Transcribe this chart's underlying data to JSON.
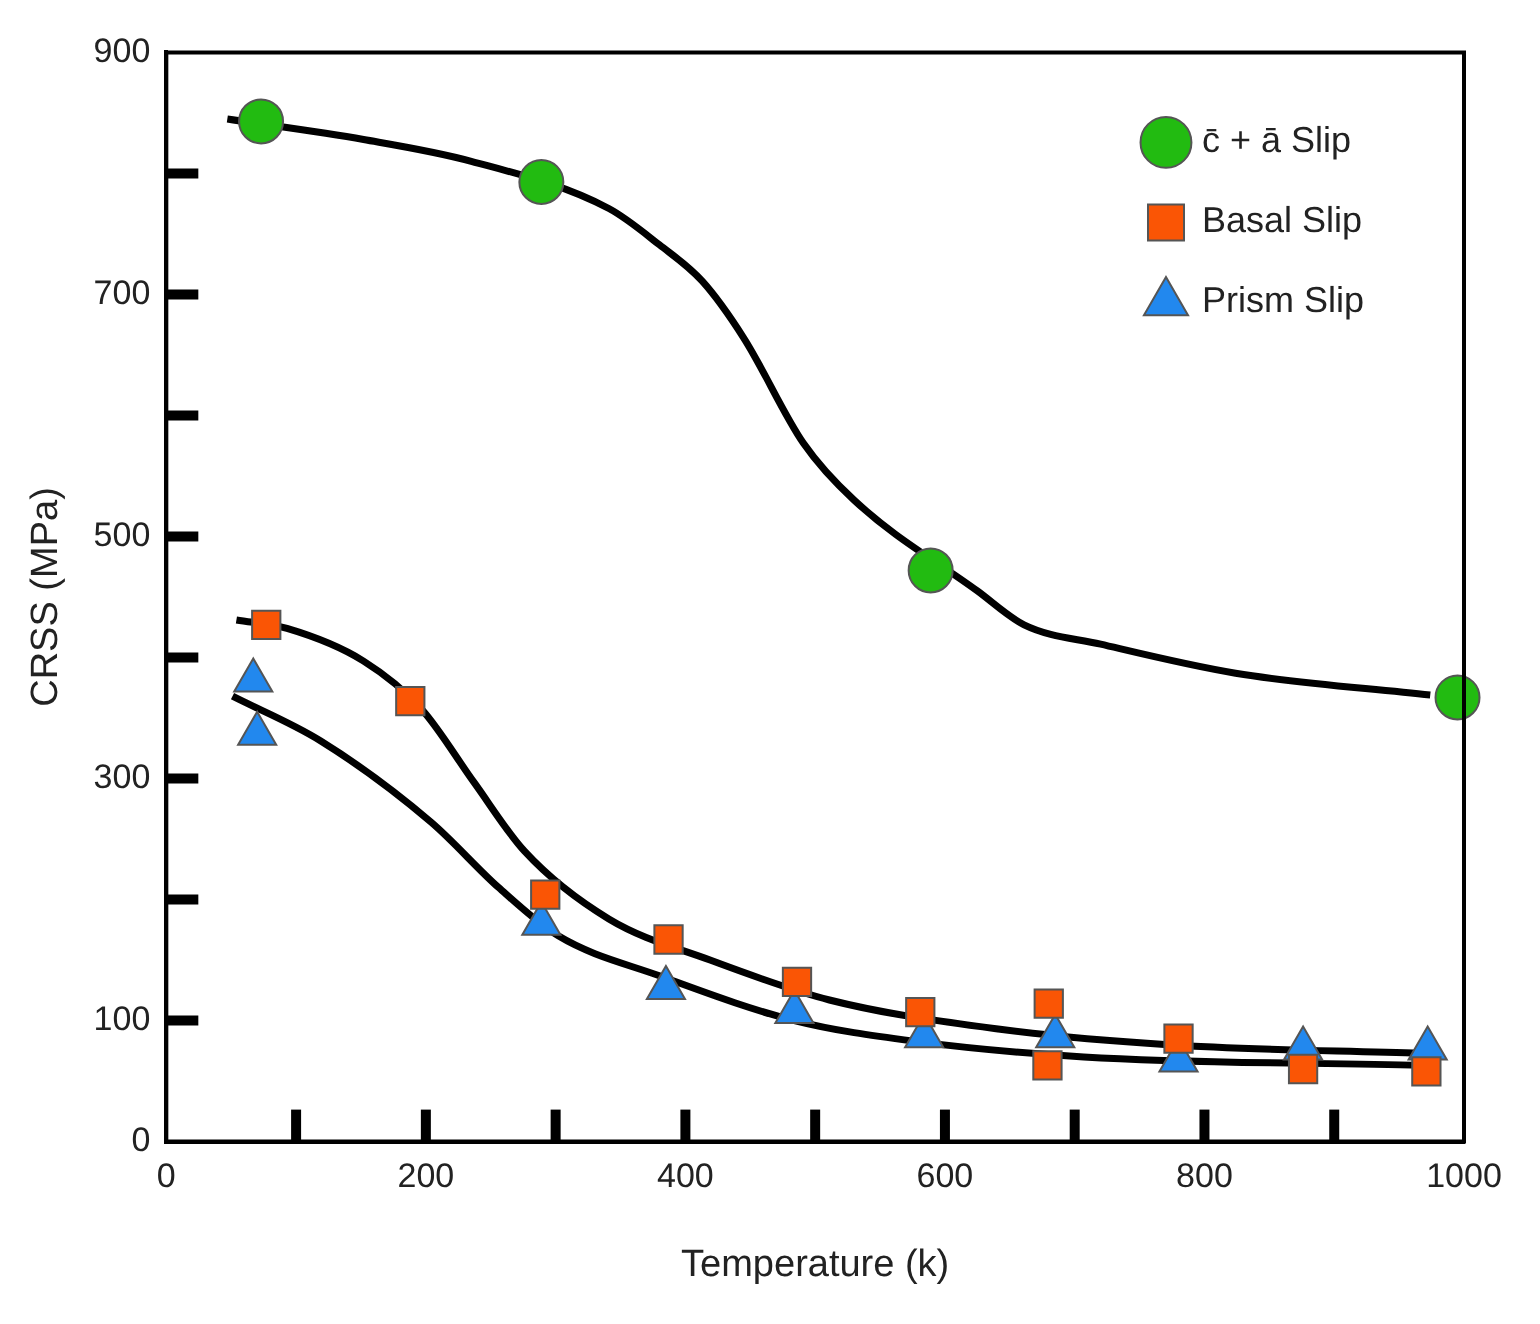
{
  "chart_data": {
    "type": "scatter",
    "xlabel": "Temperature (k)",
    "ylabel": "CRSS (MPa)",
    "xlim": [
      0,
      1000
    ],
    "ylim": [
      0,
      900
    ],
    "xticks": [
      0,
      {
        "value": 100,
        "label": null
      },
      200,
      {
        "value": 300,
        "label": null
      },
      400,
      {
        "value": 500,
        "label": null
      },
      600,
      {
        "value": 700,
        "label": null
      },
      800,
      {
        "value": 900,
        "label": null
      },
      1000
    ],
    "yticks": [
      0,
      100,
      {
        "value": 200,
        "label": null
      },
      300,
      {
        "value": 400,
        "label": null
      },
      500,
      {
        "value": 600,
        "label": null
      },
      700,
      {
        "value": 800,
        "label": null
      },
      900
    ],
    "grid": false,
    "legend": "top right",
    "series": [
      {
        "name": "c̄ + ā Slip",
        "marker": "circle",
        "color": "#22bb11",
        "x": [
          73,
          289,
          589,
          995
        ],
        "values": [
          843,
          793,
          472,
          367
        ]
      },
      {
        "name": "Basal Slip",
        "marker": "square",
        "color": "#fa5505",
        "x": [
          77,
          188,
          292,
          387,
          486,
          581,
          680,
          679,
          780,
          876,
          971
        ],
        "values": [
          427,
          364,
          204,
          167,
          132,
          107,
          114,
          63,
          85,
          60,
          58
        ]
      },
      {
        "name": "Prism Slip",
        "marker": "triangle",
        "color": "#2288ee",
        "x": [
          67,
          70,
          289,
          385,
          484,
          584,
          685,
          780,
          876,
          972
        ],
        "values": [
          381,
          337,
          180,
          127,
          107,
          87,
          87,
          67,
          77,
          77
        ]
      },
      {
        "type": "line",
        "marker": "none",
        "color": "#000000",
        "x": [
          47,
          152,
          235,
          341,
          380,
          413,
          445,
          491,
          530,
          625,
          661,
          720,
          824,
          974
        ],
        "values": [
          845,
          828,
          810,
          771,
          741,
          711,
          664,
          577,
          530,
          455,
          427,
          411,
          387,
          369
        ]
      },
      {
        "type": "line",
        "marker": "none",
        "color": "#000000",
        "x": [
          54,
          93,
          152,
          197,
          237,
          276,
          341,
          419,
          511,
          641,
          772,
          967
        ],
        "values": [
          431,
          424,
          397,
          357,
          297,
          240,
          184,
          150,
          117,
          93,
          80,
          73
        ]
      },
      {
        "type": "line",
        "marker": "none",
        "color": "#000000",
        "x": [
          51,
          119,
          204,
          256,
          302,
          380,
          484,
          576,
          707,
          967
        ],
        "values": [
          368,
          331,
          264,
          210,
          170,
          137,
          100,
          83,
          70,
          63
        ]
      }
    ]
  }
}
